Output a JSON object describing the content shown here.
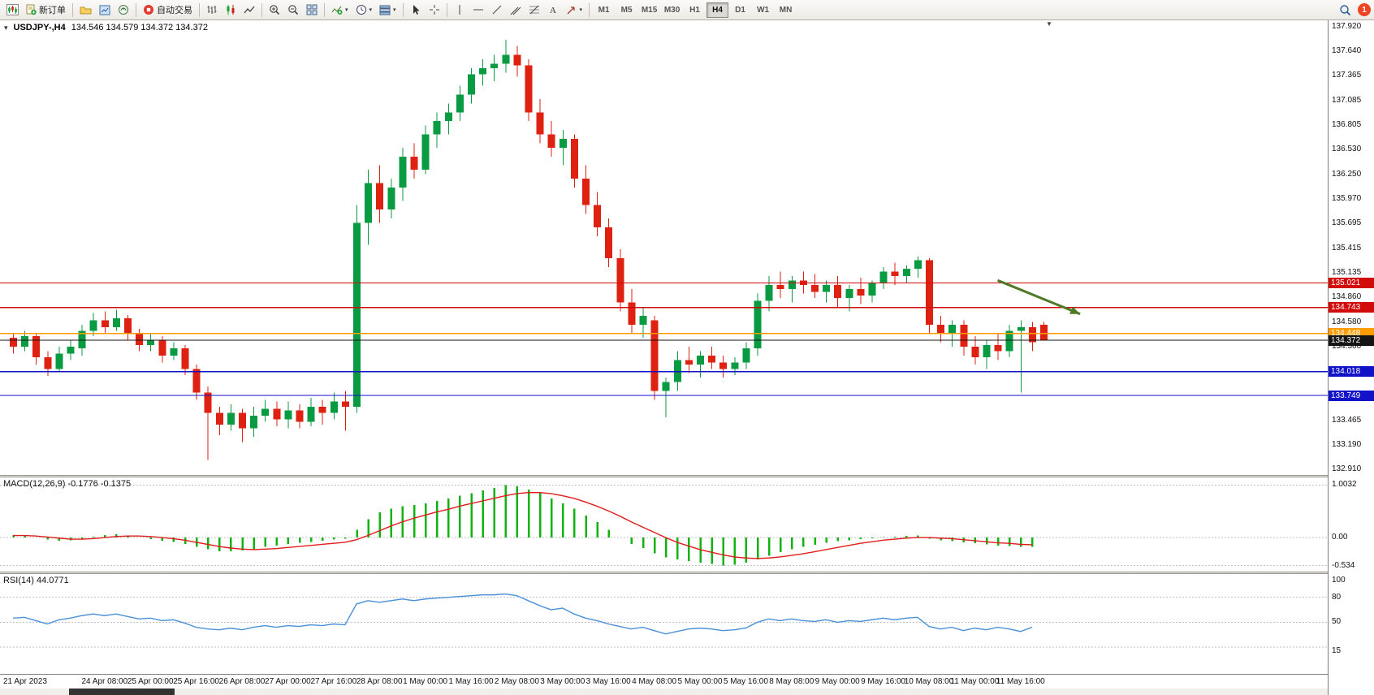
{
  "toolbar": {
    "new_order": "新订单",
    "auto_trading": "自动交易",
    "timeframes": [
      "M1",
      "M5",
      "M15",
      "M30",
      "H1",
      "H4",
      "D1",
      "W1",
      "MN"
    ],
    "active_timeframe": "H4",
    "notification_count": "1"
  },
  "icons": [
    "new-chart-icon",
    "new-order-icon",
    "profiles-icon",
    "charts-icon",
    "data-window-icon",
    "auto-trading-icon",
    "bar-chart-icon",
    "candlestick-icon",
    "line-chart-icon",
    "zoom-in-icon",
    "zoom-out-icon",
    "tile-windows-icon",
    "indicators-icon",
    "periods-icon",
    "templates-icon",
    "cursor-icon",
    "crosshair-icon",
    "vertical-line-icon",
    "horizontal-line-icon",
    "trendline-icon",
    "channel-icon",
    "fibonacci-icon",
    "text-icon",
    "arrows-icon",
    "search-icon",
    "notification-badge",
    "one-click-trading-icon",
    "chart-shift-marker"
  ],
  "chart": {
    "symbol_title": "USDJPY-,H4",
    "ohlc": "134.546 134.579 134.372 134.372",
    "price_axis_labels": [
      137.92,
      137.64,
      137.365,
      137.085,
      136.805,
      136.53,
      136.25,
      135.97,
      135.695,
      135.415,
      135.135,
      134.86,
      134.58,
      134.3,
      134.025,
      133.745,
      133.465,
      133.19,
      132.91
    ],
    "levels": [
      {
        "price": 135.021,
        "label": "135.021",
        "color": "#D20A0A"
      },
      {
        "price": 134.743,
        "label": "134.743",
        "color": "#D20A0A"
      },
      {
        "price": 134.448,
        "label": "134.448",
        "color": "#FF9C00"
      },
      {
        "price": 134.018,
        "label": "134.018",
        "color": "#1212C8"
      },
      {
        "price": 133.749,
        "label": "133.749",
        "color": "#1212C8"
      },
      {
        "price": 134.372,
        "label": "134.372",
        "color": "#141414",
        "type": "bid"
      }
    ],
    "arrow": {
      "from_index": 86,
      "from_price": 135.05,
      "to_index": 93.2,
      "to_price": 134.67,
      "color": "#4E7A27"
    },
    "time_labels": [
      {
        "i": 0,
        "t": "21 Apr 2023"
      },
      {
        "i": 8,
        "t": "24 Apr 08:00"
      },
      {
        "i": 12,
        "t": "25 Apr 00:00"
      },
      {
        "i": 16,
        "t": "25 Apr 16:00"
      },
      {
        "i": 20,
        "t": "26 Apr 08:00"
      },
      {
        "i": 24,
        "t": "27 Apr 00:00"
      },
      {
        "i": 28,
        "t": "27 Apr 16:00"
      },
      {
        "i": 32,
        "t": "28 Apr 08:00"
      },
      {
        "i": 36,
        "t": "1 May 00:00"
      },
      {
        "i": 40,
        "t": "1 May 16:00"
      },
      {
        "i": 44,
        "t": "2 May 08:00"
      },
      {
        "i": 48,
        "t": "3 May 00:00"
      },
      {
        "i": 52,
        "t": "3 May 16:00"
      },
      {
        "i": 56,
        "t": "4 May 08:00"
      },
      {
        "i": 60,
        "t": "5 May 00:00"
      },
      {
        "i": 64,
        "t": "5 May 16:00"
      },
      {
        "i": 68,
        "t": "8 May 08:00"
      },
      {
        "i": 72,
        "t": "9 May 00:00"
      },
      {
        "i": 76,
        "t": "9 May 16:00"
      },
      {
        "i": 80,
        "t": "10 May 08:00"
      },
      {
        "i": 84,
        "t": "11 May 00:00"
      },
      {
        "i": 88,
        "t": "11 May 16:00"
      }
    ]
  },
  "chart_data": {
    "type": "candlestick",
    "symbol": "USDJPY-",
    "timeframe": "H4",
    "price_min": 132.85,
    "price_max": 137.99,
    "candles": [
      [
        134.4,
        134.45,
        134.22,
        134.3
      ],
      [
        134.3,
        134.48,
        134.25,
        134.42
      ],
      [
        134.42,
        134.45,
        134.1,
        134.18
      ],
      [
        134.18,
        134.25,
        133.97,
        134.05
      ],
      [
        134.05,
        134.3,
        134.02,
        134.22
      ],
      [
        134.22,
        134.38,
        134.15,
        134.3
      ],
      [
        134.28,
        134.55,
        134.2,
        134.48
      ],
      [
        134.48,
        134.68,
        134.42,
        134.6
      ],
      [
        134.6,
        134.7,
        134.45,
        134.52
      ],
      [
        134.52,
        134.72,
        134.48,
        134.62
      ],
      [
        134.62,
        134.66,
        134.38,
        134.45
      ],
      [
        134.45,
        134.5,
        134.25,
        134.32
      ],
      [
        134.32,
        134.45,
        134.25,
        134.38
      ],
      [
        134.38,
        134.42,
        134.12,
        134.2
      ],
      [
        134.2,
        134.35,
        134.15,
        134.28
      ],
      [
        134.28,
        134.32,
        133.98,
        134.05
      ],
      [
        134.05,
        134.1,
        133.7,
        133.78
      ],
      [
        133.78,
        133.85,
        133.02,
        133.55
      ],
      [
        133.55,
        133.62,
        133.3,
        133.42
      ],
      [
        133.42,
        133.65,
        133.35,
        133.55
      ],
      [
        133.55,
        133.6,
        133.22,
        133.38
      ],
      [
        133.38,
        133.62,
        133.28,
        133.52
      ],
      [
        133.52,
        133.7,
        133.45,
        133.6
      ],
      [
        133.6,
        133.68,
        133.4,
        133.48
      ],
      [
        133.48,
        133.68,
        133.38,
        133.58
      ],
      [
        133.58,
        133.65,
        133.38,
        133.45
      ],
      [
        133.45,
        133.72,
        133.4,
        133.62
      ],
      [
        133.62,
        133.7,
        133.42,
        133.55
      ],
      [
        133.55,
        133.78,
        133.48,
        133.68
      ],
      [
        133.68,
        133.8,
        133.35,
        133.62
      ],
      [
        133.62,
        135.9,
        133.55,
        135.7
      ],
      [
        135.7,
        136.3,
        135.45,
        136.15
      ],
      [
        136.15,
        136.35,
        135.7,
        135.85
      ],
      [
        135.85,
        136.2,
        135.75,
        136.1
      ],
      [
        136.1,
        136.55,
        135.95,
        136.45
      ],
      [
        136.45,
        136.6,
        136.2,
        136.3
      ],
      [
        136.3,
        136.8,
        136.25,
        136.7
      ],
      [
        136.7,
        136.95,
        136.55,
        136.85
      ],
      [
        136.85,
        137.05,
        136.7,
        136.95
      ],
      [
        136.95,
        137.25,
        136.85,
        137.15
      ],
      [
        137.15,
        137.45,
        137.05,
        137.38
      ],
      [
        137.38,
        137.55,
        137.25,
        137.45
      ],
      [
        137.45,
        137.6,
        137.3,
        137.5
      ],
      [
        137.5,
        137.77,
        137.4,
        137.6
      ],
      [
        137.6,
        137.7,
        137.35,
        137.48
      ],
      [
        137.48,
        137.55,
        136.85,
        136.95
      ],
      [
        136.95,
        137.1,
        136.6,
        136.7
      ],
      [
        136.7,
        136.85,
        136.45,
        136.55
      ],
      [
        136.55,
        136.75,
        136.35,
        136.65
      ],
      [
        136.65,
        136.7,
        136.1,
        136.2
      ],
      [
        136.2,
        136.35,
        135.8,
        135.9
      ],
      [
        135.9,
        136.05,
        135.55,
        135.65
      ],
      [
        135.65,
        135.75,
        135.2,
        135.3
      ],
      [
        135.3,
        135.4,
        134.7,
        134.8
      ],
      [
        134.8,
        134.95,
        134.45,
        134.55
      ],
      [
        134.55,
        134.75,
        134.4,
        134.65
      ],
      [
        134.6,
        134.65,
        133.7,
        133.8
      ],
      [
        133.8,
        133.95,
        133.5,
        133.9
      ],
      [
        133.9,
        134.25,
        133.8,
        134.15
      ],
      [
        134.15,
        134.3,
        134.0,
        134.1
      ],
      [
        134.1,
        134.25,
        133.95,
        134.2
      ],
      [
        134.2,
        134.3,
        134.05,
        134.12
      ],
      [
        134.12,
        134.2,
        133.95,
        134.05
      ],
      [
        134.05,
        134.18,
        133.98,
        134.12
      ],
      [
        134.12,
        134.35,
        134.05,
        134.28
      ],
      [
        134.28,
        134.9,
        134.2,
        134.82
      ],
      [
        134.82,
        135.1,
        134.7,
        135.0
      ],
      [
        135.0,
        135.15,
        134.85,
        134.95
      ],
      [
        134.95,
        135.1,
        134.8,
        135.05
      ],
      [
        135.05,
        135.15,
        134.9,
        135.0
      ],
      [
        135.0,
        135.12,
        134.85,
        134.92
      ],
      [
        134.92,
        135.05,
        134.8,
        135.0
      ],
      [
        135.0,
        135.1,
        134.75,
        134.85
      ],
      [
        134.85,
        135.0,
        134.7,
        134.95
      ],
      [
        134.95,
        135.08,
        134.78,
        134.88
      ],
      [
        134.88,
        135.05,
        134.8,
        135.02
      ],
      [
        135.02,
        135.2,
        134.95,
        135.15
      ],
      [
        135.15,
        135.25,
        135.0,
        135.1
      ],
      [
        135.1,
        135.22,
        135.02,
        135.18
      ],
      [
        135.18,
        135.32,
        135.08,
        135.28
      ],
      [
        135.28,
        135.3,
        134.45,
        134.55
      ],
      [
        134.55,
        134.65,
        134.35,
        134.45
      ],
      [
        134.45,
        134.6,
        134.3,
        134.55
      ],
      [
        134.55,
        134.6,
        134.2,
        134.3
      ],
      [
        134.3,
        134.42,
        134.1,
        134.18
      ],
      [
        134.18,
        134.38,
        134.05,
        134.32
      ],
      [
        134.32,
        134.45,
        134.15,
        134.25
      ],
      [
        134.25,
        134.55,
        134.18,
        134.48
      ],
      [
        134.48,
        134.6,
        133.78,
        134.52
      ],
      [
        134.52,
        134.58,
        134.25,
        134.35
      ],
      [
        134.546,
        134.579,
        134.372,
        134.372
      ]
    ]
  },
  "macd": {
    "label": "MACD(12,26,9) -0.1776 -0.1375",
    "range": [
      -0.65,
      1.15
    ],
    "axis": [
      {
        "v": 1.0032,
        "t": "1.0032"
      },
      {
        "v": 0,
        "t": "0.00"
      },
      {
        "v": -0.534,
        "t": "-0.534"
      }
    ],
    "histogram": [
      0.05,
      0.03,
      0.0,
      -0.04,
      -0.06,
      -0.05,
      -0.02,
      0.02,
      0.05,
      0.06,
      0.04,
      0.0,
      -0.03,
      -0.06,
      -0.08,
      -0.12,
      -0.18,
      -0.22,
      -0.26,
      -0.26,
      -0.25,
      -0.22,
      -0.18,
      -0.15,
      -0.12,
      -0.1,
      -0.08,
      -0.06,
      -0.04,
      -0.02,
      0.15,
      0.35,
      0.48,
      0.55,
      0.6,
      0.62,
      0.65,
      0.7,
      0.75,
      0.8,
      0.85,
      0.9,
      0.95,
      1.0,
      0.98,
      0.92,
      0.85,
      0.75,
      0.65,
      0.55,
      0.42,
      0.3,
      0.15,
      0.0,
      -0.12,
      -0.2,
      -0.3,
      -0.38,
      -0.42,
      -0.45,
      -0.48,
      -0.5,
      -0.53,
      -0.52,
      -0.48,
      -0.42,
      -0.35,
      -0.28,
      -0.22,
      -0.18,
      -0.14,
      -0.1,
      -0.07,
      -0.05,
      -0.03,
      -0.01,
      0.01,
      0.02,
      0.03,
      0.04,
      -0.02,
      -0.05,
      -0.07,
      -0.09,
      -0.11,
      -0.13,
      -0.15,
      -0.16,
      -0.18,
      -0.1776
    ],
    "signal": [
      0.04,
      0.04,
      0.03,
      0.01,
      -0.01,
      -0.03,
      -0.03,
      -0.02,
      0.0,
      0.02,
      0.03,
      0.03,
      0.02,
      0.0,
      -0.02,
      -0.05,
      -0.09,
      -0.13,
      -0.17,
      -0.2,
      -0.22,
      -0.23,
      -0.22,
      -0.21,
      -0.19,
      -0.17,
      -0.15,
      -0.13,
      -0.11,
      -0.09,
      -0.04,
      0.04,
      0.13,
      0.22,
      0.3,
      0.37,
      0.43,
      0.49,
      0.54,
      0.6,
      0.65,
      0.7,
      0.75,
      0.8,
      0.84,
      0.86,
      0.86,
      0.84,
      0.8,
      0.75,
      0.68,
      0.6,
      0.51,
      0.41,
      0.3,
      0.2,
      0.1,
      0.0,
      -0.09,
      -0.16,
      -0.23,
      -0.28,
      -0.33,
      -0.37,
      -0.39,
      -0.4,
      -0.39,
      -0.37,
      -0.34,
      -0.31,
      -0.27,
      -0.23,
      -0.19,
      -0.15,
      -0.11,
      -0.08,
      -0.05,
      -0.03,
      -0.01,
      0.0,
      0.0,
      -0.01,
      -0.02,
      -0.04,
      -0.06,
      -0.08,
      -0.1,
      -0.11,
      -0.13,
      -0.1375
    ]
  },
  "rsi": {
    "label": "RSI(14) 44.0771",
    "range": [
      -12,
      108
    ],
    "axis": [
      {
        "v": 100,
        "t": "100"
      },
      {
        "v": 80,
        "t": "80"
      },
      {
        "v": 50,
        "t": "50"
      },
      {
        "v": 15,
        "t": "15"
      }
    ],
    "levels": [
      80,
      50,
      20
    ],
    "values": [
      55,
      56,
      52,
      48,
      53,
      55,
      58,
      60,
      58,
      60,
      57,
      54,
      55,
      52,
      53,
      49,
      44,
      42,
      41,
      43,
      41,
      44,
      46,
      44,
      46,
      45,
      47,
      46,
      48,
      47,
      72,
      76,
      74,
      76,
      78,
      76,
      78,
      79,
      80,
      81,
      82,
      83,
      83,
      84,
      82,
      76,
      70,
      65,
      67,
      60,
      55,
      52,
      48,
      45,
      42,
      44,
      40,
      36,
      39,
      42,
      43,
      42,
      40,
      41,
      43,
      50,
      54,
      52,
      54,
      52,
      51,
      53,
      50,
      52,
      51,
      53,
      55,
      53,
      55,
      56,
      45,
      42,
      44,
      40,
      43,
      41,
      44,
      42,
      39,
      44.08
    ]
  },
  "colors": {
    "bull": "#089B41",
    "bear": "#DE2110",
    "macd_hist": "#12B212",
    "macd_signal": "#E21B1B",
    "rsi_line": "#4A90D9",
    "grid_dots": "#C0C0C0"
  }
}
